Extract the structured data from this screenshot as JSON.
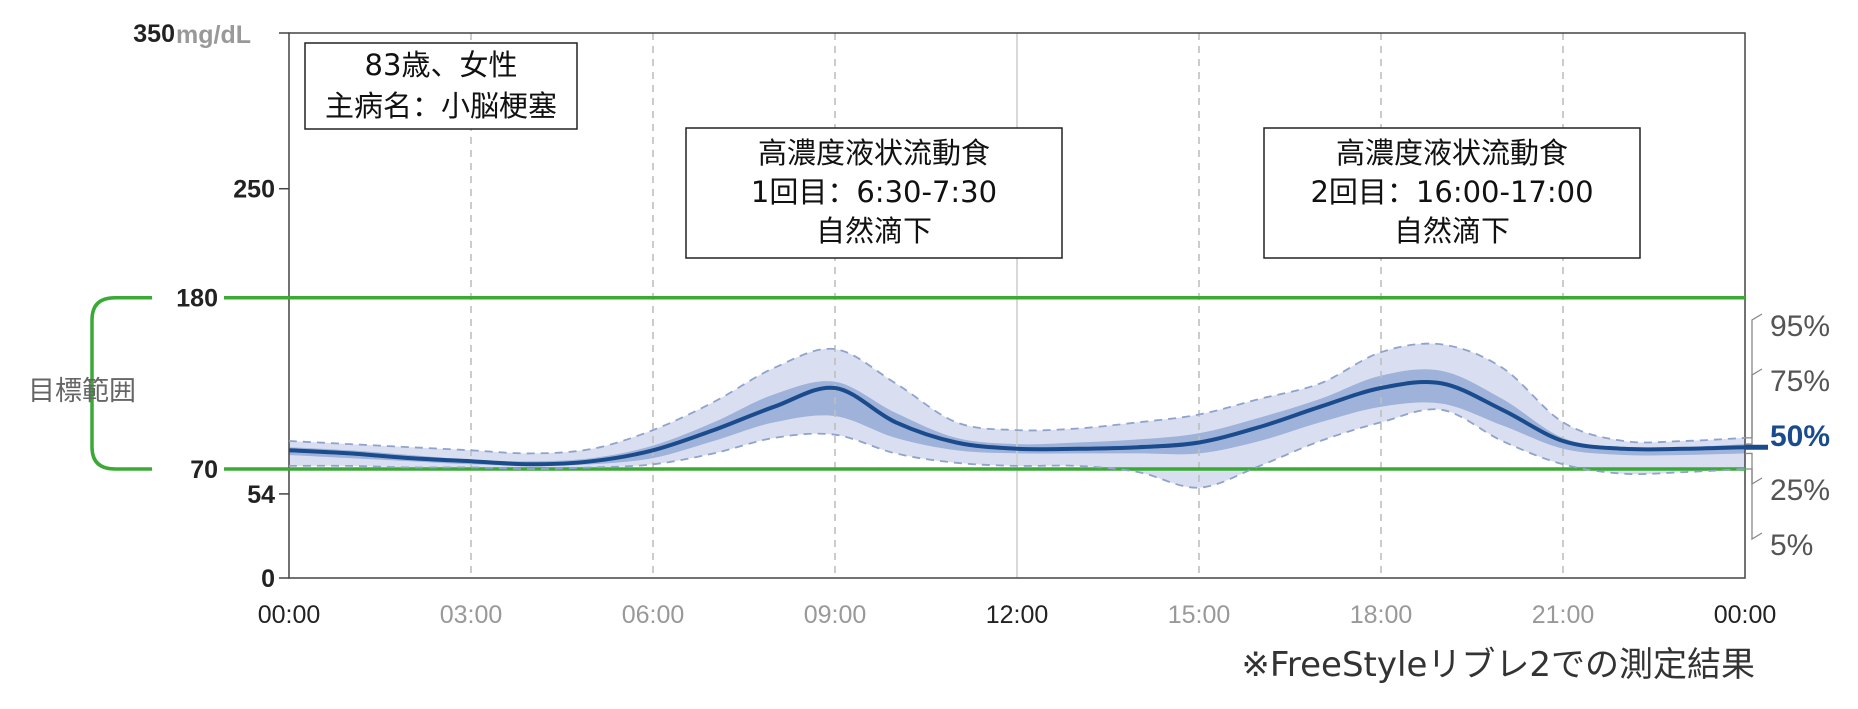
{
  "chart_data": {
    "type": "area",
    "y_unit": "mg/dL",
    "ylim": [
      0,
      350
    ],
    "yticks": [
      {
        "value": 0,
        "label": "0"
      },
      {
        "value": 54,
        "label": "54"
      },
      {
        "value": 70,
        "label": "70"
      },
      {
        "value": 180,
        "label": "180"
      },
      {
        "value": 250,
        "label": "250"
      },
      {
        "value": 350,
        "label": "350"
      }
    ],
    "xlim": [
      0,
      24
    ],
    "xticks": [
      {
        "value": 0,
        "label": "00:00",
        "emphasis": true
      },
      {
        "value": 3,
        "label": "03:00",
        "emphasis": false
      },
      {
        "value": 6,
        "label": "06:00",
        "emphasis": false
      },
      {
        "value": 9,
        "label": "09:00",
        "emphasis": false
      },
      {
        "value": 12,
        "label": "12:00",
        "emphasis": true
      },
      {
        "value": 15,
        "label": "15:00",
        "emphasis": false
      },
      {
        "value": 18,
        "label": "18:00",
        "emphasis": false
      },
      {
        "value": 21,
        "label": "21:00",
        "emphasis": false
      },
      {
        "value": 24,
        "label": "00:00",
        "emphasis": true
      }
    ],
    "target_range": {
      "low": 70,
      "high": 180,
      "label": "目標範囲",
      "color": "#3aaa35"
    },
    "x": [
      0,
      1,
      2,
      3,
      4,
      5,
      6,
      7,
      8,
      9,
      10,
      11,
      12,
      13,
      14,
      15,
      16,
      17,
      18,
      19,
      20,
      21,
      22,
      23,
      24
    ],
    "series": [
      {
        "name": "95%",
        "style": "dashed",
        "values": [
          88,
          86,
          84,
          82,
          80,
          83,
          95,
          113,
          135,
          147,
          125,
          100,
          95,
          96,
          100,
          105,
          115,
          125,
          145,
          150,
          135,
          100,
          88,
          88,
          90
        ]
      },
      {
        "name": "75%",
        "style": "band",
        "values": [
          84,
          82,
          79,
          76,
          75,
          77,
          85,
          100,
          118,
          126,
          106,
          90,
          86,
          87,
          89,
          93,
          103,
          115,
          130,
          133,
          115,
          90,
          84,
          84,
          86
        ]
      },
      {
        "name": "50%",
        "style": "solid",
        "values": [
          82,
          80,
          77,
          75,
          73,
          75,
          82,
          95,
          110,
          122,
          100,
          87,
          83,
          83,
          84,
          87,
          97,
          110,
          122,
          125,
          108,
          88,
          83,
          83,
          84
        ]
      },
      {
        "name": "25%",
        "style": "band",
        "values": [
          79,
          77,
          75,
          73,
          72,
          73,
          77,
          88,
          100,
          104,
          90,
          82,
          80,
          80,
          80,
          80,
          88,
          100,
          110,
          112,
          98,
          83,
          79,
          79,
          80
        ]
      },
      {
        "name": "5%",
        "style": "dashed",
        "values": [
          72,
          72,
          71,
          71,
          70,
          71,
          73,
          80,
          90,
          92,
          80,
          74,
          72,
          72,
          68,
          58,
          72,
          88,
          100,
          108,
          88,
          73,
          67,
          68,
          70
        ]
      }
    ],
    "colors": {
      "outer_band": "#d9dff0",
      "inner_band": "#9fb2d9",
      "median": "#1a4b8c",
      "dashed": "#8fa3cc",
      "grid": "#bfbfbf"
    },
    "annotations": {
      "patient": [
        "83歳、女性",
        "主病名：小脳梗塞"
      ],
      "meal1": [
        "高濃度液状流動食",
        "1回目：6:30-7:30",
        "自然滴下"
      ],
      "meal2": [
        "高濃度液状流動食",
        "2回目：16:00-17:00",
        "自然滴下"
      ]
    },
    "footnote": "※FreeStyleリブレ2での測定結果"
  }
}
